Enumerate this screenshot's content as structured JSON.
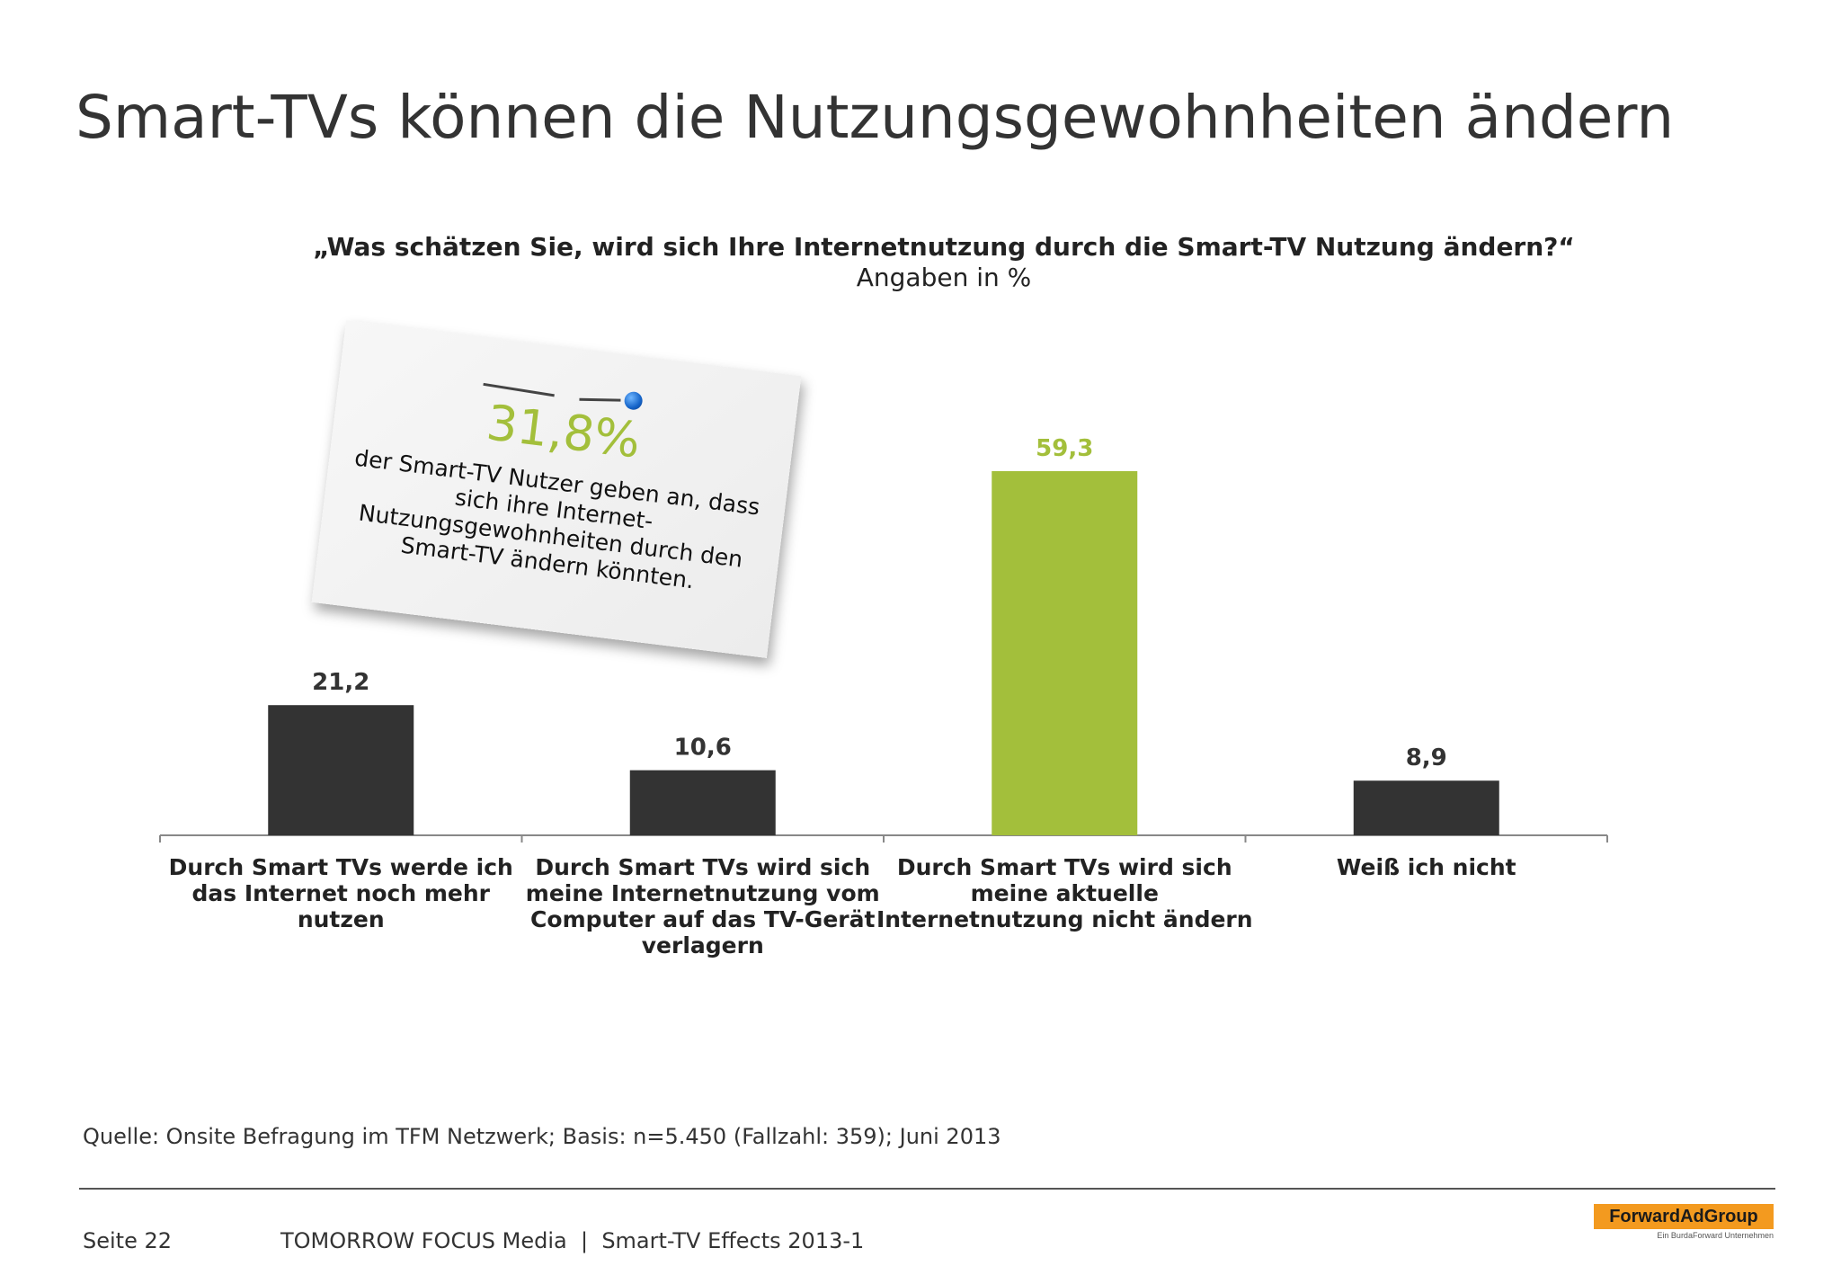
{
  "page": {
    "title": "Smart-TVs können die Nutzungsgewohnheiten ändern",
    "source": "Quelle: Onsite Befragung im TFM Netzwerk; Basis: n=5.450 (Fallzahl: 359); Juni 2013",
    "page_number": "Seite 22",
    "footer_text": "TOMORROW FOCUS Media  |  Smart-TV Effects 2013-1",
    "logo_text": "ForwardAdGroup",
    "logo_subtext": "Ein BurdaForward Unternehmen"
  },
  "note": {
    "value": "31,8%",
    "text": "der Smart-TV Nutzer geben an, dass sich ihre Internet-Nutzungsgewohnheiten durch den Smart-TV ändern könnten."
  },
  "colors": {
    "dark_bar": "#333333",
    "highlight_bar": "#a3bf3b"
  },
  "chart_data": {
    "type": "bar",
    "title": "„Was schätzen Sie, wird sich Ihre Internetnutzung durch die Smart-TV Nutzung ändern?“",
    "subtitle": "Angaben in %",
    "xlabel": "",
    "ylabel": "",
    "ylim": [
      0,
      60
    ],
    "grid": false,
    "categories": [
      "Durch Smart TVs werde ich das Internet noch mehr nutzen",
      "Durch Smart TVs wird sich meine Internetnutzung vom Computer auf das TV-Gerät verlagern",
      "Durch Smart TVs wird sich meine aktuelle Internetnutzung nicht ändern",
      "Weiß ich nicht"
    ],
    "category_lines": [
      [
        "Durch Smart TVs werde ich",
        "das Internet noch mehr",
        "nutzen"
      ],
      [
        "Durch Smart TVs wird sich",
        "meine Internetnutzung vom",
        "Computer auf das TV-Gerät",
        "verlagern"
      ],
      [
        "Durch Smart TVs wird sich",
        "meine aktuelle",
        "Internetnutzung nicht ändern"
      ],
      [
        "Weiß ich nicht"
      ]
    ],
    "values": [
      21.2,
      10.6,
      59.3,
      8.9
    ],
    "value_labels": [
      "21,2",
      "10,6",
      "59,3",
      "8,9"
    ],
    "highlight_index": 2
  }
}
